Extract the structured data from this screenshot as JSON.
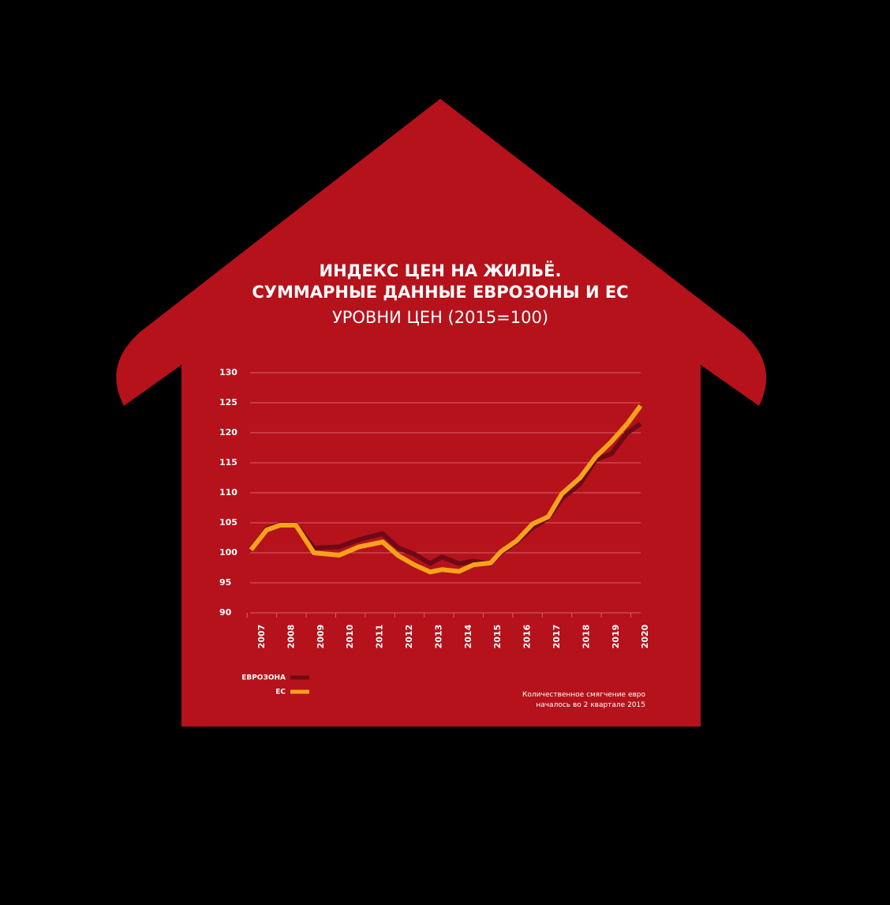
{
  "chart_data": {
    "type": "line",
    "title": [
      "ИНДЕКС ЦЕН НА ЖИЛЬЁ.",
      "СУММАРНЫЕ ДАННЫЕ ЕВРОЗОНЫ И ЕС"
    ],
    "subtitle": "УРОВНИ ЦЕН (2015=100)",
    "x": [
      2006.63,
      2007.16,
      2007.61,
      2008.15,
      2008.76,
      2009.62,
      2010.29,
      2011.09,
      2011.63,
      2012.16,
      2012.7,
      2013.1,
      2013.68,
      2014.17,
      2014.75,
      2015.1,
      2015.63,
      2016.17,
      2016.7,
      2017.16,
      2017.78,
      2018.31,
      2018.84,
      2019.38,
      2019.83
    ],
    "series": [
      {
        "name": "ЕВРОЗОНА",
        "color": "#6e0a16",
        "values": [
          100.5,
          104,
          104.7,
          104.7,
          100.8,
          101,
          102.2,
          103.2,
          100.8,
          99.8,
          98.2,
          99.3,
          98.2,
          98.6,
          98.2,
          100,
          101.8,
          104.2,
          105.8,
          109,
          111.5,
          115.5,
          116.5,
          120,
          121.5
        ]
      },
      {
        "name": "ЕС",
        "color": "#f7a21b",
        "values": [
          100.5,
          103.8,
          104.6,
          104.6,
          100,
          99.6,
          101,
          101.8,
          99.5,
          98,
          96.8,
          97.2,
          96.9,
          98,
          98.3,
          100.2,
          102,
          104.8,
          106,
          109.8,
          112.5,
          116,
          118.5,
          121.5,
          124.5
        ]
      }
    ],
    "xlim": [
      2006.6,
      2020.2
    ],
    "xticks": [
      2007,
      2008,
      2009,
      2010,
      2011,
      2012,
      2013,
      2014,
      2015,
      2016,
      2017,
      2018,
      2019,
      2020
    ],
    "ylim": [
      90,
      130
    ],
    "yticks": [
      90,
      95,
      100,
      105,
      110,
      115,
      120,
      125,
      130
    ],
    "grid": true,
    "note": [
      "Количественное смягчение евро",
      "началось во 2 квартале 2015"
    ]
  }
}
